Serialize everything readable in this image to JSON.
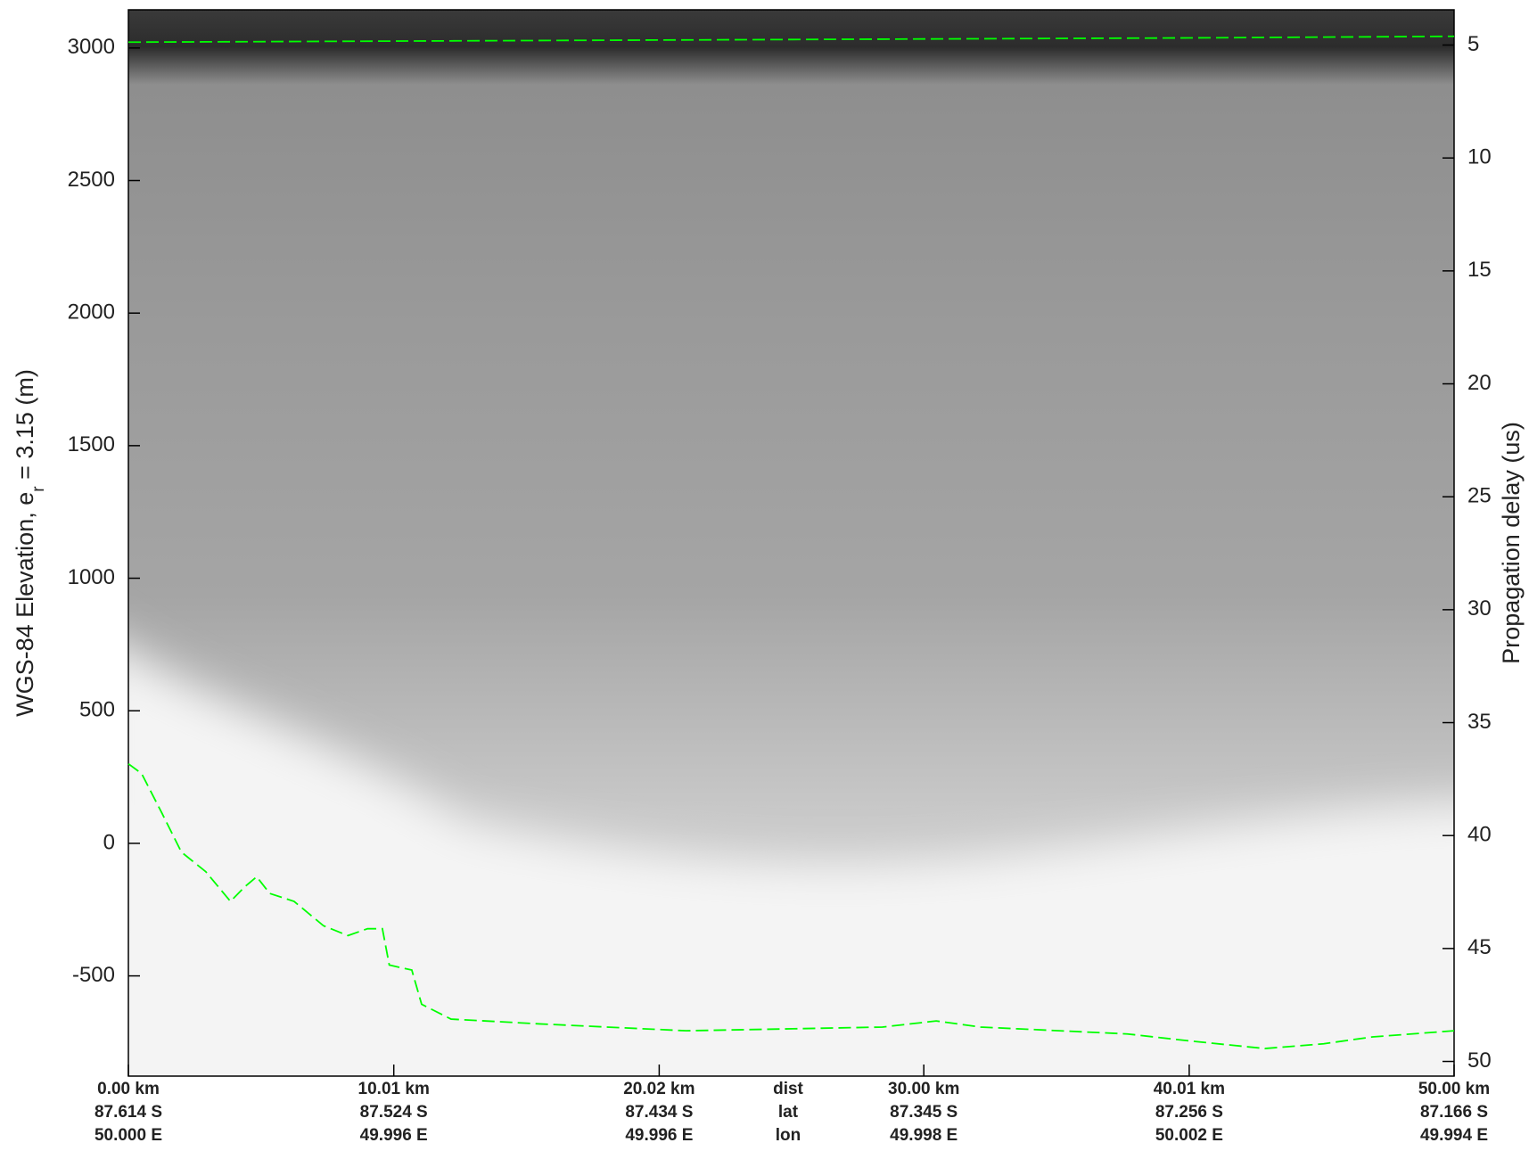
{
  "chart_data": {
    "type": "line",
    "y_label": {
      "text": "WGS-84 Elevation, e",
      "subscript": "r",
      "suffix": " = 3.15 (m)"
    },
    "y2_label": "Propagation delay (us)",
    "xlim": [
      0,
      50
    ],
    "xticks": [
      {
        "value": 0,
        "label": "0.00 km"
      },
      {
        "value": 10.01,
        "label": "10.01 km"
      },
      {
        "value": 20.02,
        "label": "20.02 km"
      },
      {
        "value": 30.0,
        "label": "30.00 km"
      },
      {
        "value": 40.01,
        "label": "40.01 km"
      },
      {
        "value": 50.0,
        "label": "50.00 km"
      }
    ],
    "x_row_names": [
      "dist",
      "lat",
      "lon"
    ],
    "lat_labels": [
      "87.614 S",
      "87.524 S",
      "87.434 S",
      "87.345 S",
      "87.256 S",
      "87.166 S"
    ],
    "lon_labels": [
      "50.000 E",
      "49.996 E",
      "49.996 E",
      "49.998 E",
      "50.002 E",
      "49.994 E"
    ],
    "ylim": [
      -878,
      3144
    ],
    "yticks": [
      -500,
      0,
      500,
      1000,
      1500,
      2000,
      2500,
      3000
    ],
    "y2lim": [
      50.65,
      3.44
    ],
    "y2ticks": [
      5,
      10,
      15,
      20,
      25,
      30,
      35,
      40,
      45,
      50
    ],
    "dashed": true,
    "series": [
      {
        "color": "#00ff00",
        "x": [
          0,
          10,
          20,
          30,
          40,
          50
        ],
        "values": [
          3022,
          3026,
          3030,
          3034,
          3038,
          3044
        ]
      },
      {
        "color": "#00ff00",
        "x": [
          0,
          0.5,
          1.26,
          2.0,
          2.92,
          3.85,
          4.4,
          4.84,
          5.33,
          6.25,
          7.36,
          8.28,
          9.02,
          9.58,
          9.84,
          10.69,
          11.06,
          12.17,
          15.5,
          21.04,
          28.44,
          30.47,
          32.14,
          37.68,
          39.9,
          42.86,
          45.08,
          46.93,
          50
        ],
        "values": [
          300,
          263,
          115,
          -33,
          -107,
          -219,
          -163,
          -126,
          -189,
          -219,
          -311,
          -348,
          -322,
          -322,
          -459,
          -478,
          -607,
          -663,
          -681,
          -707,
          -693,
          -670,
          -693,
          -719,
          -744,
          -774,
          -756,
          -730,
          -707
        ]
      }
    ]
  }
}
